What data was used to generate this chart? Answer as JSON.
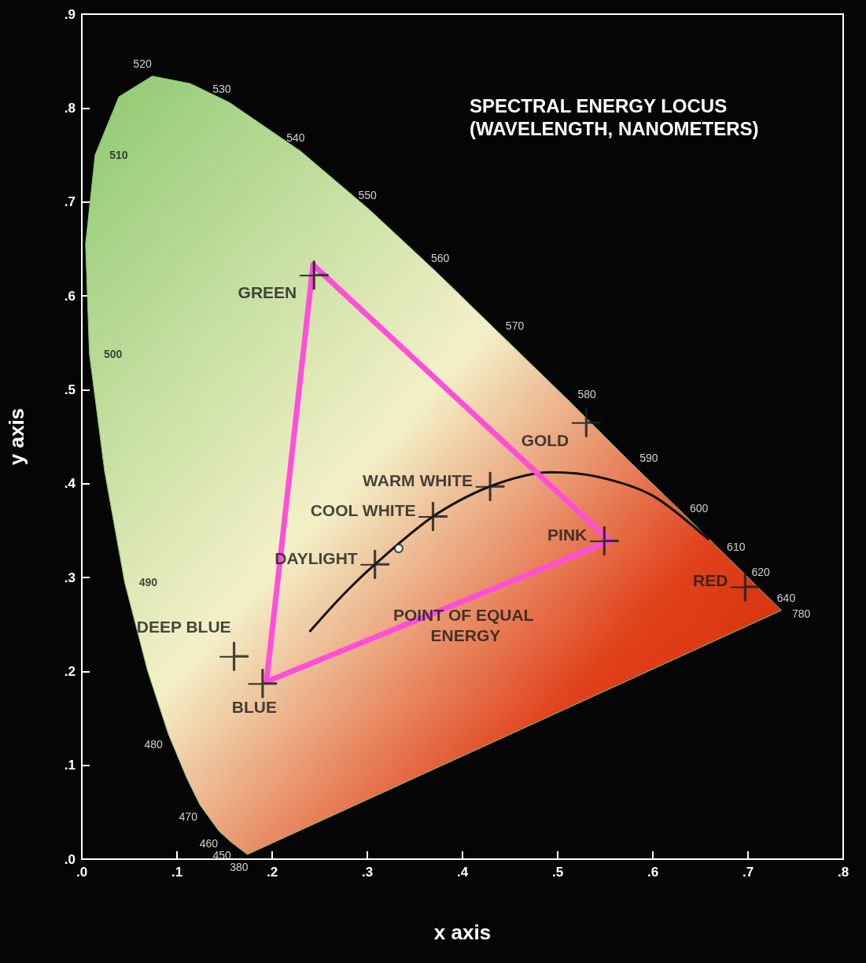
{
  "chart_data": {
    "type": "line",
    "xlabel": "x axis",
    "ylabel": "y axis",
    "xlim": [
      0,
      0.8
    ],
    "ylim": [
      0,
      0.9
    ],
    "xticks": [
      {
        "value": 0,
        "label": ".0"
      },
      {
        "value": 0.1,
        "label": ".1"
      },
      {
        "value": 0.2,
        "label": ".2"
      },
      {
        "value": 0.3,
        "label": ".3"
      },
      {
        "value": 0.4,
        "label": ".4"
      },
      {
        "value": 0.5,
        "label": ".5"
      },
      {
        "value": 0.6,
        "label": ".6"
      },
      {
        "value": 0.7,
        "label": ".7"
      },
      {
        "value": 0.8,
        "label": ".8"
      }
    ],
    "yticks": [
      {
        "value": 0,
        "label": ".0"
      },
      {
        "value": 0.1,
        "label": ".1"
      },
      {
        "value": 0.2,
        "label": ".2"
      },
      {
        "value": 0.3,
        "label": ".3"
      },
      {
        "value": 0.4,
        "label": ".4"
      },
      {
        "value": 0.5,
        "label": ".5"
      },
      {
        "value": 0.6,
        "label": ".6"
      },
      {
        "value": 0.7,
        "label": ".7"
      },
      {
        "value": 0.8,
        "label": ".8"
      },
      {
        "value": 0.9,
        "label": ".9"
      }
    ],
    "grid": false,
    "legend": false,
    "series": [
      {
        "type": "area",
        "color": "#8cc970",
        "x": [
          0.174,
          0.157,
          0.144,
          0.124,
          0.11,
          0.091,
          0.069,
          0.045,
          0.024,
          0.008,
          0.004,
          0.014,
          0.039,
          0.074,
          0.114,
          0.155,
          0.23,
          0.302,
          0.373,
          0.444,
          0.513,
          0.575,
          0.627,
          0.666,
          0.692,
          0.719,
          0.735,
          0.174
        ],
        "values": [
          0.005,
          0.018,
          0.03,
          0.058,
          0.087,
          0.133,
          0.201,
          0.295,
          0.413,
          0.538,
          0.655,
          0.75,
          0.812,
          0.834,
          0.826,
          0.806,
          0.754,
          0.692,
          0.625,
          0.555,
          0.487,
          0.424,
          0.373,
          0.334,
          0.308,
          0.281,
          0.265,
          0.005
        ]
      },
      {
        "color": "#111111",
        "x": [
          0.24,
          0.275,
          0.308,
          0.369,
          0.429,
          0.493,
          0.543,
          0.6,
          0.658
        ],
        "values": [
          0.243,
          0.282,
          0.314,
          0.365,
          0.397,
          0.412,
          0.407,
          0.387,
          0.341
        ]
      },
      {
        "color": "#ff4fd8",
        "x": [
          0.194,
          0.243
        ],
        "values": [
          0.189,
          0.633
        ]
      },
      {
        "color": "#ff4fd8",
        "x": [
          0.243,
          0.555
        ],
        "values": [
          0.633,
          0.339
        ]
      },
      {
        "color": "#ff4fd8",
        "x": [
          0.194,
          0.555
        ],
        "values": [
          0.189,
          0.339
        ]
      },
      {
        "type": "scatter",
        "marker": "cross",
        "color": "#222222",
        "x": [
          0.244,
          0.16,
          0.19,
          0.308,
          0.369,
          0.429,
          0.53,
          0.549,
          0.697
        ],
        "values": [
          0.622,
          0.216,
          0.187,
          0.314,
          0.365,
          0.397,
          0.465,
          0.339,
          0.29
        ]
      },
      {
        "type": "scatter",
        "marker": "circle",
        "name": "POINT OF EQUAL ENERGY",
        "color": "#222222",
        "x": [
          0.333
        ],
        "values": [
          0.331
        ]
      }
    ],
    "annotations": [
      "SPECTRAL ENERGY LOCUS\n(WAVELENGTH, NANOMETERS)",
      {
        "text": "GREEN",
        "x": 0.244,
        "y": 0.622
      },
      {
        "text": "DEEP BLUE",
        "x": 0.16,
        "y": 0.216
      },
      {
        "text": "BLUE",
        "x": 0.19,
        "y": 0.187
      },
      {
        "text": "DAYLIGHT",
        "x": 0.308,
        "y": 0.314
      },
      {
        "text": "COOL WHITE",
        "x": 0.369,
        "y": 0.365
      },
      {
        "text": "WARM WHITE",
        "x": 0.429,
        "y": 0.397
      },
      {
        "text": "GOLD",
        "x": 0.53,
        "y": 0.465
      },
      {
        "text": "PINK",
        "x": 0.549,
        "y": 0.339
      },
      {
        "text": "RED",
        "x": 0.697,
        "y": 0.29
      },
      {
        "text": "380",
        "x": 0.174,
        "y": 0.005
      },
      {
        "text": "450",
        "x": 0.157,
        "y": 0.018
      },
      {
        "text": "460",
        "x": 0.144,
        "y": 0.03
      },
      {
        "text": "470",
        "x": 0.124,
        "y": 0.058
      },
      {
        "text": "480",
        "x": 0.091,
        "y": 0.133
      },
      {
        "text": "490",
        "x": 0.045,
        "y": 0.295
      },
      {
        "text": "500",
        "x": 0.008,
        "y": 0.538
      },
      {
        "text": "510",
        "x": 0.014,
        "y": 0.75
      },
      {
        "text": "520",
        "x": 0.074,
        "y": 0.834
      },
      {
        "text": "530",
        "x": 0.155,
        "y": 0.806
      },
      {
        "text": "540",
        "x": 0.23,
        "y": 0.754
      },
      {
        "text": "550",
        "x": 0.302,
        "y": 0.692
      },
      {
        "text": "560",
        "x": 0.373,
        "y": 0.625
      },
      {
        "text": "570",
        "x": 0.444,
        "y": 0.555
      },
      {
        "text": "580",
        "x": 0.513,
        "y": 0.487
      },
      {
        "text": "590",
        "x": 0.575,
        "y": 0.424
      },
      {
        "text": "600",
        "x": 0.627,
        "y": 0.373
      },
      {
        "text": "610",
        "x": 0.666,
        "y": 0.334
      },
      {
        "text": "620",
        "x": 0.692,
        "y": 0.308
      },
      {
        "text": "640",
        "x": 0.719,
        "y": 0.281
      },
      {
        "text": "780",
        "x": 0.735,
        "y": 0.265
      }
    ]
  }
}
